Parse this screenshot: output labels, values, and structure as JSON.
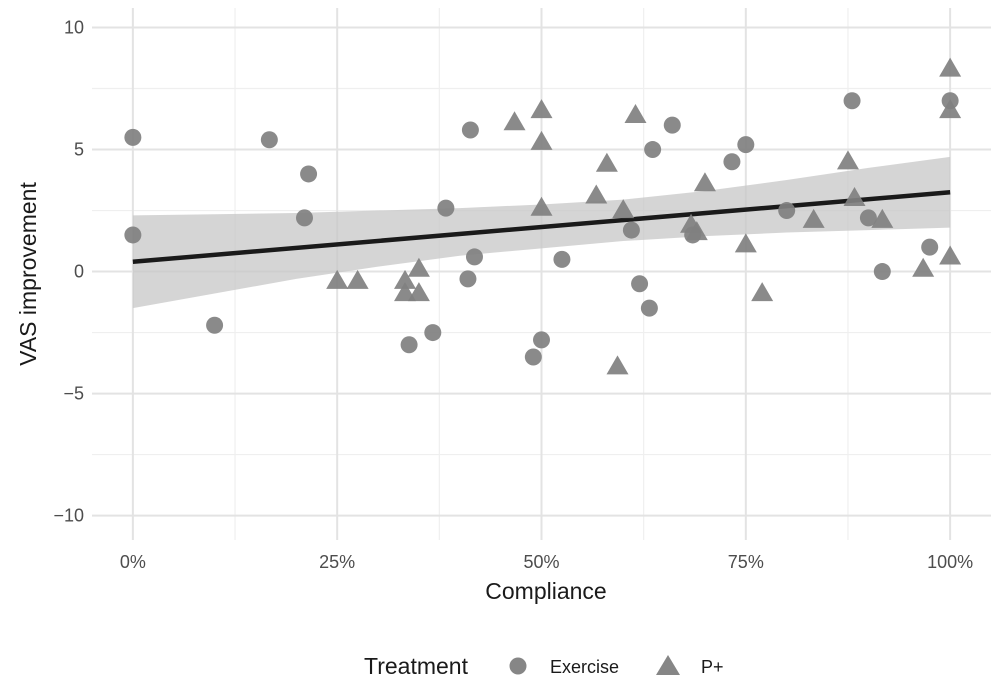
{
  "chart_data": {
    "type": "scatter",
    "xlabel": "Compliance",
    "ylabel": "VAS improvement",
    "xlim": [
      -0.05,
      1.05
    ],
    "ylim": [
      -11,
      10.8
    ],
    "x_ticks": [
      0,
      0.25,
      0.5,
      0.75,
      1.0
    ],
    "x_tick_labels": [
      "0%",
      "25%",
      "50%",
      "75%",
      "100%"
    ],
    "y_ticks": [
      -10,
      -5,
      0,
      5,
      10
    ],
    "y_tick_labels": [
      "−10",
      "−5",
      "0",
      "5",
      "10"
    ],
    "grid": true,
    "legend": {
      "title": "Treatment",
      "placement": "bottom",
      "entries": [
        {
          "label": "Exercise",
          "shape": "circle"
        },
        {
          "label": "P+",
          "shape": "triangle"
        }
      ]
    },
    "point_color": "#808080",
    "series": [
      {
        "name": "Exercise",
        "shape": "circle",
        "points": [
          {
            "x": 0.0,
            "y": 5.5
          },
          {
            "x": 0.0,
            "y": 1.5
          },
          {
            "x": 0.1,
            "y": -2.2
          },
          {
            "x": 0.167,
            "y": 5.4
          },
          {
            "x": 0.21,
            "y": 2.2
          },
          {
            "x": 0.215,
            "y": 4.0
          },
          {
            "x": 0.338,
            "y": -3.0
          },
          {
            "x": 0.367,
            "y": -2.5
          },
          {
            "x": 0.383,
            "y": 2.6
          },
          {
            "x": 0.41,
            "y": -0.3
          },
          {
            "x": 0.413,
            "y": 5.8
          },
          {
            "x": 0.418,
            "y": 0.6
          },
          {
            "x": 0.49,
            "y": -3.5
          },
          {
            "x": 0.5,
            "y": -2.8
          },
          {
            "x": 0.525,
            "y": 0.5
          },
          {
            "x": 0.61,
            "y": 1.7
          },
          {
            "x": 0.62,
            "y": -0.5
          },
          {
            "x": 0.632,
            "y": -1.5
          },
          {
            "x": 0.636,
            "y": 5.0
          },
          {
            "x": 0.66,
            "y": 6.0
          },
          {
            "x": 0.685,
            "y": 1.5
          },
          {
            "x": 0.733,
            "y": 4.5
          },
          {
            "x": 0.75,
            "y": 5.2
          },
          {
            "x": 0.8,
            "y": 2.5
          },
          {
            "x": 0.88,
            "y": 7.0
          },
          {
            "x": 0.9,
            "y": 2.2
          },
          {
            "x": 0.917,
            "y": 0.0
          },
          {
            "x": 0.975,
            "y": 1.0
          },
          {
            "x": 1.0,
            "y": 7.0
          }
        ]
      },
      {
        "name": "P+",
        "shape": "triangle",
        "points": [
          {
            "x": 0.25,
            "y": -0.4
          },
          {
            "x": 0.275,
            "y": -0.4
          },
          {
            "x": 0.333,
            "y": -0.4
          },
          {
            "x": 0.333,
            "y": -0.9
          },
          {
            "x": 0.35,
            "y": 0.1
          },
          {
            "x": 0.35,
            "y": -0.9
          },
          {
            "x": 0.467,
            "y": 6.1
          },
          {
            "x": 0.5,
            "y": 6.6
          },
          {
            "x": 0.5,
            "y": 5.3
          },
          {
            "x": 0.5,
            "y": 2.6
          },
          {
            "x": 0.567,
            "y": 3.1
          },
          {
            "x": 0.58,
            "y": 4.4
          },
          {
            "x": 0.593,
            "y": -3.9
          },
          {
            "x": 0.6,
            "y": 2.5
          },
          {
            "x": 0.615,
            "y": 6.4
          },
          {
            "x": 0.683,
            "y": 1.9
          },
          {
            "x": 0.69,
            "y": 1.6
          },
          {
            "x": 0.7,
            "y": 3.6
          },
          {
            "x": 0.75,
            "y": 1.1
          },
          {
            "x": 0.77,
            "y": -0.9
          },
          {
            "x": 0.833,
            "y": 2.1
          },
          {
            "x": 0.875,
            "y": 4.5
          },
          {
            "x": 0.883,
            "y": 3.0
          },
          {
            "x": 0.917,
            "y": 2.1
          },
          {
            "x": 0.967,
            "y": 0.1
          },
          {
            "x": 1.0,
            "y": 8.3
          },
          {
            "x": 1.0,
            "y": 6.6
          },
          {
            "x": 1.0,
            "y": 0.6
          }
        ]
      }
    ],
    "trend_line": {
      "color": "#1a1a1a",
      "points": [
        {
          "x": 0.0,
          "y": 0.4
        },
        {
          "x": 1.0,
          "y": 3.25
        }
      ]
    },
    "confidence_band": {
      "color": "#c7c7c7",
      "x": [
        0.0,
        0.1,
        0.2,
        0.3,
        0.4,
        0.5,
        0.6,
        0.7,
        0.8,
        0.9,
        1.0
      ],
      "upper": [
        2.3,
        2.35,
        2.4,
        2.5,
        2.6,
        2.75,
        2.95,
        3.3,
        3.75,
        4.25,
        4.7
      ],
      "lower": [
        -1.5,
        -0.9,
        -0.3,
        0.2,
        0.65,
        0.95,
        1.25,
        1.45,
        1.6,
        1.7,
        1.8
      ]
    }
  }
}
